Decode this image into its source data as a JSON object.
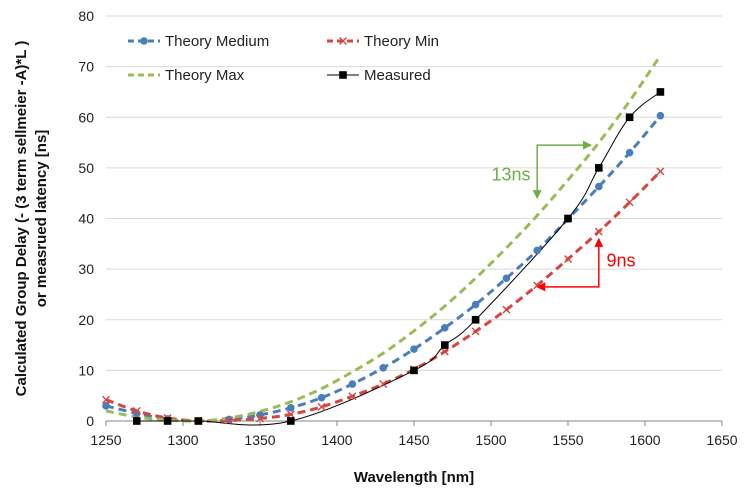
{
  "chart_data": {
    "type": "line",
    "title": "",
    "xlabel": "Wavelength [nm]",
    "ylabel_lines": [
      "Calculated Group Delay (- (3 term sellmeier -A)*L )",
      "or measrued latency    [ns]"
    ],
    "xlim": [
      1250,
      1650
    ],
    "ylim": [
      0,
      80
    ],
    "x_ticks": [
      1250,
      1300,
      1350,
      1400,
      1450,
      1500,
      1550,
      1600,
      1650
    ],
    "y_ticks": [
      0,
      10,
      20,
      30,
      40,
      50,
      60,
      70,
      80
    ],
    "grid": "horizontal",
    "legend_position": "top-left",
    "series": [
      {
        "name": "Theory Medium",
        "color": "#4a7ebb",
        "style": "dashed",
        "marker": "circle",
        "x": [
          1250,
          1270,
          1290,
          1310,
          1330,
          1350,
          1370,
          1390,
          1410,
          1430,
          1450,
          1470,
          1490,
          1510,
          1530,
          1550,
          1570,
          1590,
          1610
        ],
        "y": [
          3.0,
          1.5,
          0.4,
          0.0,
          0.3,
          1.2,
          2.6,
          4.6,
          7.3,
          10.5,
          14.2,
          18.4,
          23.0,
          28.2,
          33.7,
          39.9,
          46.3,
          53.0,
          60.3
        ]
      },
      {
        "name": "Theory Min",
        "color": "#d64541",
        "style": "dashed",
        "marker": "x",
        "x": [
          1250,
          1270,
          1290,
          1310,
          1330,
          1350,
          1370,
          1390,
          1410,
          1430,
          1450,
          1470,
          1490,
          1510,
          1530,
          1550,
          1570,
          1590,
          1610
        ],
        "y": [
          4.2,
          2.0,
          0.6,
          0.0,
          0.1,
          0.5,
          1.3,
          2.8,
          4.9,
          7.3,
          10.2,
          13.7,
          17.7,
          22.0,
          26.8,
          32.0,
          37.4,
          43.2,
          49.3
        ]
      },
      {
        "name": "Theory Max",
        "color": "#9bbb59",
        "style": "dashed",
        "marker": "none",
        "x": [
          1250,
          1270,
          1290,
          1310,
          1330,
          1350,
          1370,
          1390,
          1410,
          1430,
          1450,
          1470,
          1490,
          1510,
          1530,
          1550,
          1570,
          1590,
          1610
        ],
        "y": [
          2.0,
          0.8,
          0.2,
          0.0,
          0.6,
          1.9,
          3.8,
          6.4,
          9.7,
          13.4,
          17.8,
          22.7,
          28.2,
          34.2,
          40.6,
          47.6,
          55.0,
          63.2,
          72.2
        ]
      },
      {
        "name": "Measured",
        "color": "#000000",
        "style": "solid",
        "marker": "square",
        "x": [
          1270,
          1290,
          1310,
          1370,
          1450,
          1470,
          1490,
          1550,
          1570,
          1590,
          1610
        ],
        "y": [
          0,
          0,
          0,
          0,
          10,
          15,
          20,
          40,
          50,
          60,
          65
        ]
      }
    ],
    "annotations": [
      {
        "text": "13ns",
        "color": "#70ad47",
        "arrow_x": [
          1530,
          1565
        ],
        "arrow_y": [
          44,
          55
        ],
        "corner": [
          1530,
          54.5
        ]
      },
      {
        "text": "9ns",
        "color": "#ff0000",
        "arrow_x": [
          1530,
          1570
        ],
        "arrow_y": [
          26.5,
          36
        ],
        "corner": [
          1570,
          26.5
        ]
      }
    ]
  }
}
